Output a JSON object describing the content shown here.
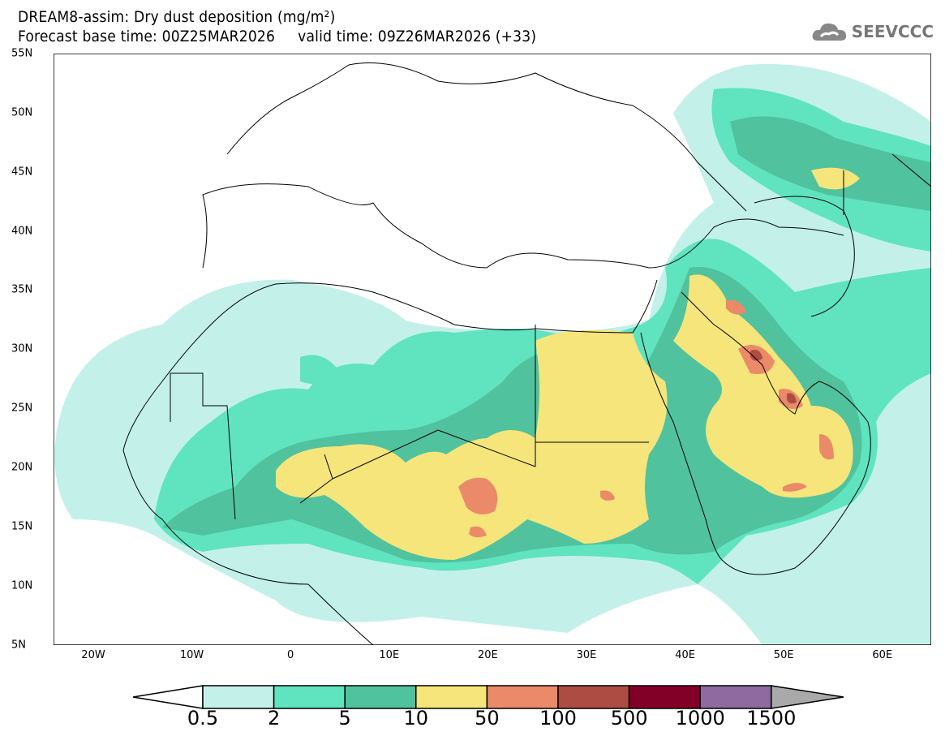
{
  "header": {
    "title": "DREAM8-assim: Dry dust deposition (mg/m²)",
    "subtitle": "Forecast base time: 00Z25MAR2026     valid time: 09Z26MAR2026 (+33)",
    "logo": "SEEVCCC"
  },
  "axes": {
    "lat_labels": [
      "55N",
      "50N",
      "45N",
      "40N",
      "35N",
      "30N",
      "25N",
      "20N",
      "15N",
      "10N",
      "5N"
    ],
    "lon_labels": [
      "20W",
      "10W",
      "0",
      "10E",
      "20E",
      "30E",
      "40E",
      "50E",
      "60E"
    ]
  },
  "colorbar": {
    "levels": [
      "0.5",
      "2",
      "5",
      "10",
      "50",
      "100",
      "500",
      "1000",
      "1500"
    ],
    "colors": [
      "#c3f1ea",
      "#5fe4bf",
      "#51c29e",
      "#f5e57a",
      "#ea8a68",
      "#ad4c42",
      "#820027",
      "#8e6aa1"
    ],
    "under_color": "#ffffff",
    "over_color": "#a9a9a9"
  }
}
